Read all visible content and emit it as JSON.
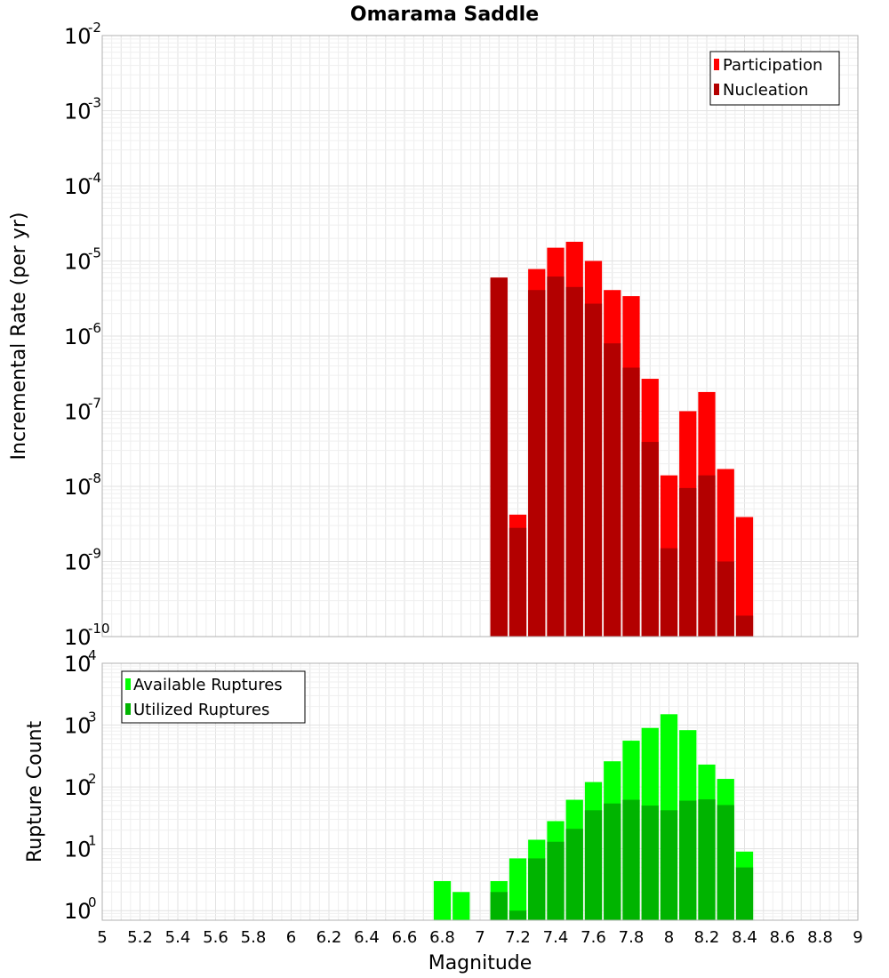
{
  "title": "Omarama Saddle",
  "xlabel": "Magnitude",
  "chart_data": [
    {
      "type": "bar",
      "title": "Omarama Saddle",
      "xlabel": "",
      "ylabel": "Incremental Rate (per yr)",
      "yscale": "log",
      "ylim": [
        1e-10,
        0.01
      ],
      "xlim": [
        5,
        9
      ],
      "ytick_exponents": [
        -10,
        -9,
        -8,
        -7,
        -6,
        -5,
        -4,
        -3,
        -2
      ],
      "grid": true,
      "legend_position": "top-right",
      "x": [
        7.1,
        7.2,
        7.3,
        7.4,
        7.5,
        7.6,
        7.7,
        7.8,
        7.9,
        8.0,
        8.1,
        8.2,
        8.3,
        8.4
      ],
      "series": [
        {
          "name": "Participation",
          "color": "#ff0000",
          "values": [
            6e-06,
            4.2e-09,
            7.8e-06,
            1.5e-05,
            1.8e-05,
            1e-05,
            4.1e-06,
            3.4e-06,
            2.7e-07,
            1.4e-08,
            1e-07,
            1.8e-07,
            1.7e-08,
            3.9e-09
          ]
        },
        {
          "name": "Nucleation",
          "color": "#b30000",
          "values": [
            6e-06,
            2.8e-09,
            4.1e-06,
            6.2e-06,
            4.5e-06,
            2.7e-06,
            8e-07,
            3.8e-07,
            3.9e-08,
            1.5e-09,
            9.5e-09,
            1.4e-08,
            1e-09,
            1.9e-10
          ]
        }
      ]
    },
    {
      "type": "bar",
      "title": "",
      "xlabel": "Magnitude",
      "ylabel": "Rupture Count",
      "yscale": "log",
      "ylim": [
        0.7,
        10000
      ],
      "xlim": [
        5,
        9
      ],
      "ytick_exponents": [
        0,
        1,
        2,
        3,
        4
      ],
      "grid": true,
      "legend_position": "top-left",
      "x": [
        6.8,
        6.9,
        7.1,
        7.2,
        7.3,
        7.4,
        7.5,
        7.6,
        7.7,
        7.8,
        7.9,
        8.0,
        8.1,
        8.2,
        8.3,
        8.4
      ],
      "series": [
        {
          "name": "Available Ruptures",
          "color": "#00ff00",
          "values": [
            3,
            2,
            3,
            7,
            14,
            28,
            62,
            120,
            260,
            560,
            900,
            1500,
            830,
            230,
            135,
            9
          ]
        },
        {
          "name": "Utilized Ruptures",
          "color": "#00b400",
          "values": [
            0,
            0,
            2,
            1,
            7,
            13,
            21,
            42,
            54,
            62,
            50,
            42,
            60,
            63,
            51,
            5
          ]
        }
      ]
    }
  ],
  "xticks": [
    "5",
    "5.2",
    "5.4",
    "5.6",
    "5.8",
    "6",
    "6.2",
    "6.4",
    "6.6",
    "6.8",
    "7",
    "7.2",
    "7.4",
    "7.6",
    "7.8",
    "8",
    "8.2",
    "8.4",
    "8.6",
    "8.8",
    "9"
  ]
}
